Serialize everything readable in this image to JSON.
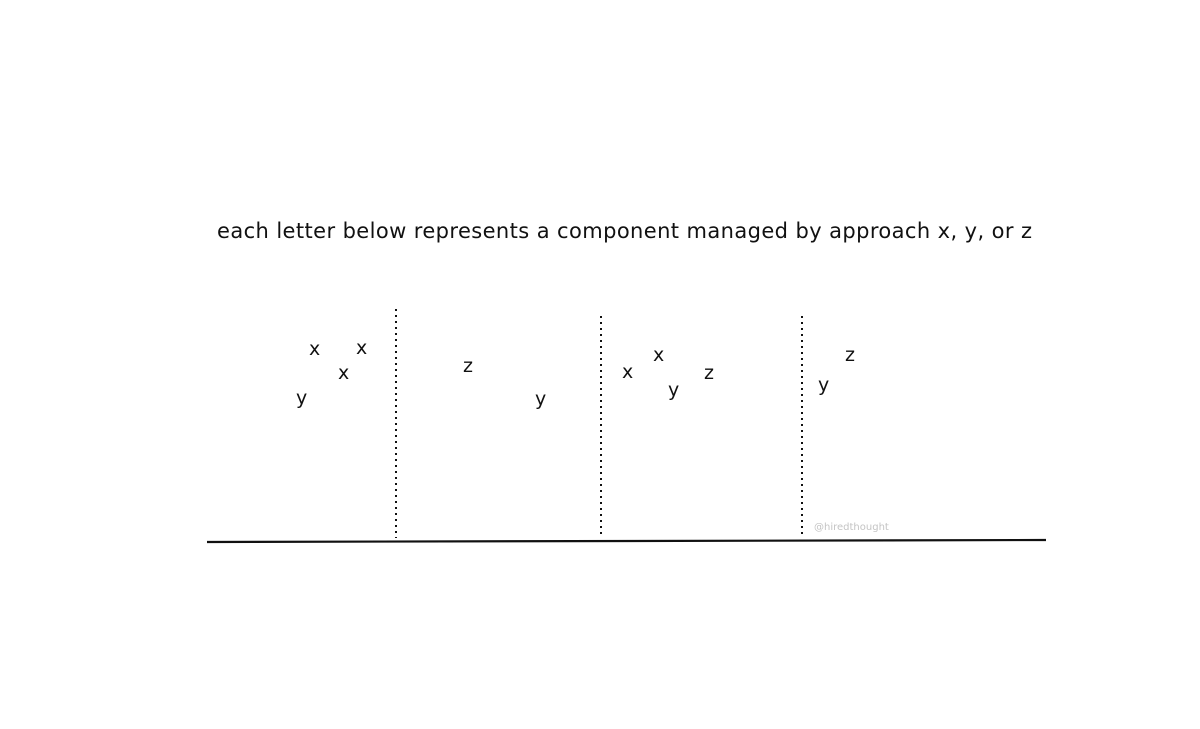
{
  "caption": "each letter below represents a component managed by approach x, y, or z",
  "watermark": "@hiredthought",
  "colors": {
    "ink": "#111111",
    "watermark": "#c4c4c4",
    "background": "#ffffff"
  },
  "groups": [
    {
      "letters": [
        "x",
        "x",
        "x",
        "y"
      ]
    },
    {
      "letters": [
        "z",
        "y"
      ]
    },
    {
      "letters": [
        "x",
        "x",
        "y",
        "z"
      ]
    },
    {
      "letters": [
        "y",
        "z"
      ]
    }
  ]
}
